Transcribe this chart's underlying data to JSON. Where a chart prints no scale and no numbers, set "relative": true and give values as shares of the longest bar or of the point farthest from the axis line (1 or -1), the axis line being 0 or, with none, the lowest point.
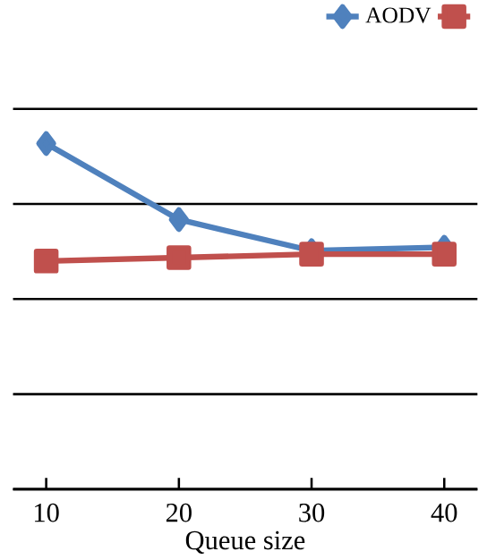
{
  "chart_data": {
    "type": "line",
    "xlabel": "Queue size",
    "categories": [
      "10",
      "20",
      "30",
      "40"
    ],
    "relative": true,
    "grid": "y",
    "legend": "top right",
    "series": [
      {
        "name": "AODV",
        "color": "#4f81bd",
        "marker": "diamond",
        "values": [
          1,
          0.78,
          0.69,
          0.7
        ]
      },
      {
        "color": "#c0504d",
        "marker": "square",
        "values": [
          0.66,
          0.67,
          0.68,
          0.68
        ]
      }
    ]
  }
}
